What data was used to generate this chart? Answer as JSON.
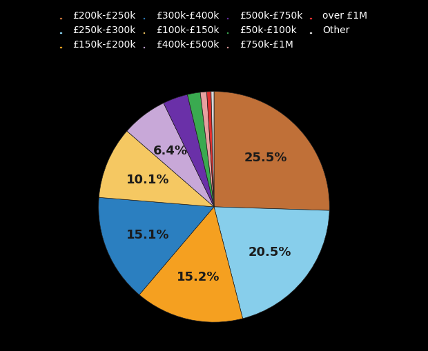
{
  "labels": [
    "£200k-£250k",
    "£250k-£300k",
    "£150k-£200k",
    "£300k-£400k",
    "£100k-£150k",
    "£400k-£500k",
    "£500k-£750k",
    "£50k-£100k",
    "£750k-£1M",
    "over £1M",
    "Other"
  ],
  "values": [
    25.5,
    20.5,
    15.2,
    15.1,
    10.1,
    6.4,
    3.5,
    1.8,
    0.9,
    0.6,
    0.4
  ],
  "colors": [
    "#c07038",
    "#87ceeb",
    "#f5a020",
    "#2b7fc0",
    "#f5c862",
    "#c8a8d8",
    "#6a30a8",
    "#3aaa50",
    "#e8a0a0",
    "#e03030",
    "#d8d8d8"
  ],
  "background_color": "#000000",
  "label_text_color": "#1a1a1a",
  "legend_text_color": "#ffffff",
  "label_fontsize": 13,
  "legend_fontsize": 10,
  "startangle": 90,
  "labeled_indices": [
    0,
    1,
    2,
    3,
    4,
    5
  ],
  "labeled_values": [
    "25.5%",
    "20.5%",
    "15.2%",
    "15.1%",
    "10.1%",
    "6.4%"
  ]
}
